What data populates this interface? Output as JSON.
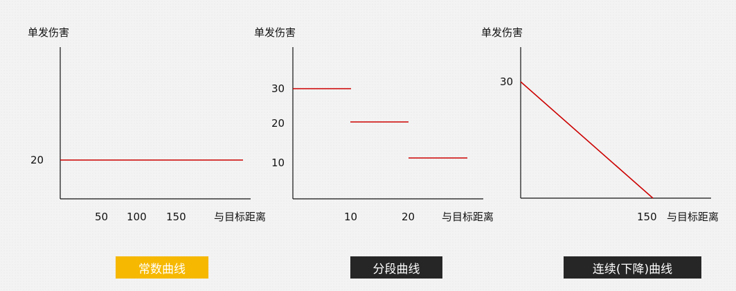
{
  "colors": {
    "curve": "#cc0000",
    "axis": "#111111",
    "active_label_bg": "#f6b800",
    "label_bg": "#262626"
  },
  "chart_data": [
    {
      "type": "line",
      "ylabel": "单发伤害",
      "xlabel": "与目标距离",
      "x_ticks": [
        "50",
        "100",
        "150"
      ],
      "y_ticks": [
        "20"
      ],
      "series": [
        {
          "points": [
            [
              0,
              20
            ],
            [
              180,
              20
            ]
          ]
        }
      ],
      "caption": "常数曲线"
    },
    {
      "type": "line",
      "ylabel": "单发伤害",
      "xlabel": "与目标距离",
      "x_ticks": [
        "10",
        "20"
      ],
      "y_ticks": [
        "30",
        "20",
        "10"
      ],
      "series": [
        {
          "segments": [
            [
              [
                0,
                30
              ],
              [
                10,
                30
              ]
            ],
            [
              [
                10,
                20
              ],
              [
                20,
                20
              ]
            ],
            [
              [
                20,
                10
              ],
              [
                30,
                10
              ]
            ]
          ]
        }
      ],
      "caption": "分段曲线"
    },
    {
      "type": "line",
      "ylabel": "单发伤害",
      "xlabel": "与目标距离",
      "x_ticks": [
        "150"
      ],
      "y_ticks": [
        "30"
      ],
      "series": [
        {
          "points": [
            [
              0,
              30
            ],
            [
              150,
              0
            ]
          ]
        }
      ],
      "caption": "连续(下降)曲线"
    }
  ]
}
